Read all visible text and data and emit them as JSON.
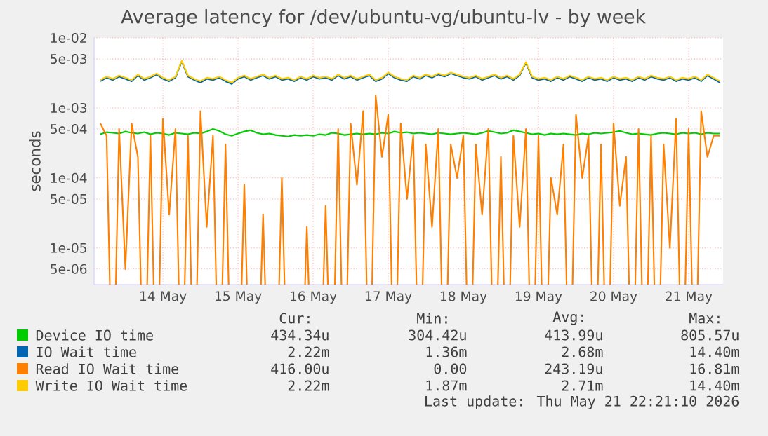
{
  "chart_data": {
    "type": "line",
    "title": "Average latency for /dev/ubuntu-vg/ubuntu-lv - by week",
    "ylabel": "seconds",
    "log": "y",
    "grid": true,
    "legend": "bottom",
    "marker": "none",
    "line_style": "solid",
    "xlim": [
      "2026-05-13T14:00",
      "2026-05-21T23:00"
    ],
    "xticks": [
      {
        "value": "2026-05-14T12:00",
        "label": "14 May"
      },
      {
        "value": "2026-05-15T12:00",
        "label": "15 May"
      },
      {
        "value": "2026-05-16T12:00",
        "label": "16 May"
      },
      {
        "value": "2026-05-17T12:00",
        "label": "17 May"
      },
      {
        "value": "2026-05-18T12:00",
        "label": "18 May"
      },
      {
        "value": "2026-05-19T12:00",
        "label": "19 May"
      },
      {
        "value": "2026-05-20T12:00",
        "label": "20 May"
      },
      {
        "value": "2026-05-21T12:00",
        "label": "21 May"
      }
    ],
    "ylim": [
      3e-06,
      0.01
    ],
    "yticks": [
      {
        "value": 0.01,
        "label": "1e-02"
      },
      {
        "value": 0.005,
        "label": "5e-03"
      },
      {
        "value": 0.001,
        "label": "1e-03"
      },
      {
        "value": 0.0005,
        "label": "5e-04"
      },
      {
        "value": 0.0001,
        "label": "1e-04"
      },
      {
        "value": 5e-05,
        "label": "5e-05"
      },
      {
        "value": 1e-05,
        "label": "1e-05"
      },
      {
        "value": 5e-06,
        "label": "5e-06"
      }
    ],
    "x": [
      "2026-05-13T16:00",
      "2026-05-13T18:00",
      "2026-05-13T20:00",
      "2026-05-13T22:00",
      "2026-05-14T00:00",
      "2026-05-14T02:00",
      "2026-05-14T04:00",
      "2026-05-14T06:00",
      "2026-05-14T08:00",
      "2026-05-14T10:00",
      "2026-05-14T12:00",
      "2026-05-14T14:00",
      "2026-05-14T16:00",
      "2026-05-14T18:00",
      "2026-05-14T20:00",
      "2026-05-14T22:00",
      "2026-05-15T00:00",
      "2026-05-15T02:00",
      "2026-05-15T04:00",
      "2026-05-15T06:00",
      "2026-05-15T08:00",
      "2026-05-15T10:00",
      "2026-05-15T12:00",
      "2026-05-15T14:00",
      "2026-05-15T16:00",
      "2026-05-15T18:00",
      "2026-05-15T20:00",
      "2026-05-15T22:00",
      "2026-05-16T00:00",
      "2026-05-16T02:00",
      "2026-05-16T04:00",
      "2026-05-16T06:00",
      "2026-05-16T08:00",
      "2026-05-16T10:00",
      "2026-05-16T12:00",
      "2026-05-16T14:00",
      "2026-05-16T16:00",
      "2026-05-16T18:00",
      "2026-05-16T20:00",
      "2026-05-16T22:00",
      "2026-05-17T00:00",
      "2026-05-17T02:00",
      "2026-05-17T04:00",
      "2026-05-17T06:00",
      "2026-05-17T08:00",
      "2026-05-17T10:00",
      "2026-05-17T12:00",
      "2026-05-17T14:00",
      "2026-05-17T16:00",
      "2026-05-17T18:00",
      "2026-05-17T20:00",
      "2026-05-17T22:00",
      "2026-05-18T00:00",
      "2026-05-18T02:00",
      "2026-05-18T04:00",
      "2026-05-18T06:00",
      "2026-05-18T08:00",
      "2026-05-18T10:00",
      "2026-05-18T12:00",
      "2026-05-18T14:00",
      "2026-05-18T16:00",
      "2026-05-18T18:00",
      "2026-05-18T20:00",
      "2026-05-18T22:00",
      "2026-05-19T00:00",
      "2026-05-19T02:00",
      "2026-05-19T04:00",
      "2026-05-19T06:00",
      "2026-05-19T08:00",
      "2026-05-19T10:00",
      "2026-05-19T12:00",
      "2026-05-19T14:00",
      "2026-05-19T16:00",
      "2026-05-19T18:00",
      "2026-05-19T20:00",
      "2026-05-19T22:00",
      "2026-05-20T00:00",
      "2026-05-20T02:00",
      "2026-05-20T04:00",
      "2026-05-20T06:00",
      "2026-05-20T08:00",
      "2026-05-20T10:00",
      "2026-05-20T12:00",
      "2026-05-20T14:00",
      "2026-05-20T16:00",
      "2026-05-20T18:00",
      "2026-05-20T20:00",
      "2026-05-20T22:00",
      "2026-05-21T00:00",
      "2026-05-21T02:00",
      "2026-05-21T04:00",
      "2026-05-21T06:00",
      "2026-05-21T08:00",
      "2026-05-21T10:00",
      "2026-05-21T12:00",
      "2026-05-21T14:00",
      "2026-05-21T16:00",
      "2026-05-21T18:00",
      "2026-05-21T20:00",
      "2026-05-21T22:00"
    ],
    "series": [
      {
        "name": "Device IO time",
        "color": "#00cc00",
        "values": [
          0.00042,
          0.00045,
          0.00044,
          0.00043,
          0.00046,
          0.00044,
          0.00043,
          0.00045,
          0.00042,
          0.00044,
          0.00043,
          0.00041,
          0.00044,
          0.00043,
          0.00042,
          0.00044,
          0.00043,
          0.00046,
          0.0005,
          0.00047,
          0.00042,
          0.0004,
          0.00043,
          0.00046,
          0.00048,
          0.00044,
          0.00042,
          0.00043,
          0.00041,
          0.0004,
          0.00039,
          0.00041,
          0.0004,
          0.00041,
          0.0004,
          0.00042,
          0.00041,
          0.00044,
          0.00043,
          0.00041,
          0.00042,
          0.00043,
          0.00042,
          0.00043,
          0.00042,
          0.00044,
          0.00043,
          0.00046,
          0.00044,
          0.00045,
          0.00043,
          0.00044,
          0.00043,
          0.00042,
          0.00044,
          0.00043,
          0.00042,
          0.00043,
          0.00044,
          0.00043,
          0.00042,
          0.00044,
          0.00047,
          0.00045,
          0.00043,
          0.00044,
          0.00048,
          0.00046,
          0.00044,
          0.00042,
          0.00043,
          0.00041,
          0.00043,
          0.00042,
          0.00043,
          0.00042,
          0.00041,
          0.00043,
          0.00042,
          0.00044,
          0.00043,
          0.00044,
          0.00045,
          0.00047,
          0.00044,
          0.00042,
          0.00043,
          0.00042,
          0.00041,
          0.00043,
          0.00044,
          0.00043,
          0.00042,
          0.00044,
          0.00043,
          0.00044,
          0.00042,
          0.00044,
          0.00043,
          0.00043
        ]
      },
      {
        "name": "IO Wait time",
        "color": "#0066b3",
        "values": [
          0.0024,
          0.0027,
          0.0025,
          0.0028,
          0.0026,
          0.0024,
          0.0029,
          0.0025,
          0.0027,
          0.003,
          0.0026,
          0.0024,
          0.0027,
          0.0046,
          0.0028,
          0.0025,
          0.0023,
          0.0026,
          0.0025,
          0.0027,
          0.0024,
          0.0022,
          0.0026,
          0.0028,
          0.0025,
          0.0027,
          0.0029,
          0.0026,
          0.0028,
          0.0025,
          0.0026,
          0.0024,
          0.0027,
          0.0025,
          0.0028,
          0.0026,
          0.0027,
          0.0025,
          0.0029,
          0.0026,
          0.0028,
          0.0025,
          0.0027,
          0.0029,
          0.0024,
          0.0026,
          0.0031,
          0.0027,
          0.0025,
          0.0024,
          0.0028,
          0.0026,
          0.0029,
          0.0027,
          0.003,
          0.0028,
          0.0031,
          0.0029,
          0.0027,
          0.0026,
          0.0028,
          0.0025,
          0.0027,
          0.0029,
          0.0026,
          0.0028,
          0.0025,
          0.0029,
          0.0044,
          0.0027,
          0.0025,
          0.0026,
          0.0024,
          0.0027,
          0.0025,
          0.0028,
          0.0026,
          0.0024,
          0.0027,
          0.0025,
          0.0026,
          0.0024,
          0.0027,
          0.0025,
          0.0026,
          0.0024,
          0.0027,
          0.0025,
          0.0028,
          0.0026,
          0.0025,
          0.0027,
          0.0024,
          0.0026,
          0.0025,
          0.0027,
          0.0024,
          0.0029,
          0.0026,
          0.0023
        ]
      },
      {
        "name": "Read IO Wait time",
        "color": "#ff8000",
        "values": [
          0.0006,
          0.0004,
          null,
          0.0005,
          5e-06,
          0.0006,
          0.0002,
          null,
          0.0004,
          null,
          0.0007,
          3e-05,
          0.0005,
          null,
          0.0004,
          null,
          0.0009,
          2e-05,
          0.0004,
          null,
          0.0003,
          null,
          null,
          8e-05,
          null,
          null,
          3e-05,
          null,
          null,
          0.0001,
          null,
          null,
          null,
          2e-05,
          null,
          null,
          4e-05,
          null,
          0.0005,
          null,
          0.0006,
          8e-05,
          0.0009,
          null,
          0.0015,
          0.0002,
          0.0008,
          null,
          0.0006,
          5e-05,
          0.0004,
          null,
          0.0003,
          2e-05,
          0.0005,
          null,
          0.0003,
          0.0001,
          0.0004,
          null,
          0.0003,
          3e-05,
          0.0005,
          null,
          0.0002,
          null,
          0.0004,
          2e-05,
          0.0005,
          null,
          0.0004,
          null,
          0.0001,
          3e-05,
          0.0003,
          null,
          0.0008,
          0.0001,
          0.0004,
          null,
          0.0003,
          null,
          0.0006,
          4e-05,
          0.0002,
          null,
          0.0005,
          null,
          0.0004,
          null,
          0.0003,
          1e-05,
          0.0007,
          null,
          0.0005,
          null,
          0.0009,
          0.0002,
          0.0004,
          0.0004
        ]
      },
      {
        "name": "Write IO Wait time",
        "color": "#ffcc00",
        "values": [
          0.0025,
          0.0028,
          0.0026,
          0.0029,
          0.0027,
          0.0025,
          0.003,
          0.0026,
          0.0028,
          0.0031,
          0.0027,
          0.0025,
          0.0028,
          0.0047,
          0.0029,
          0.0026,
          0.0024,
          0.0027,
          0.0026,
          0.0028,
          0.0025,
          0.0023,
          0.0027,
          0.0029,
          0.0026,
          0.0028,
          0.003,
          0.0027,
          0.0029,
          0.0026,
          0.0027,
          0.0025,
          0.0028,
          0.0026,
          0.0029,
          0.0027,
          0.0028,
          0.0026,
          0.003,
          0.0027,
          0.0029,
          0.0026,
          0.0028,
          0.003,
          0.0025,
          0.0027,
          0.0032,
          0.0028,
          0.0026,
          0.0025,
          0.0029,
          0.0027,
          0.003,
          0.0028,
          0.0031,
          0.0029,
          0.0032,
          0.003,
          0.0028,
          0.0027,
          0.0029,
          0.0026,
          0.0028,
          0.003,
          0.0027,
          0.0029,
          0.0026,
          0.003,
          0.0045,
          0.0028,
          0.0026,
          0.0027,
          0.0025,
          0.0028,
          0.0026,
          0.0029,
          0.0027,
          0.0025,
          0.0028,
          0.0026,
          0.0027,
          0.0025,
          0.0028,
          0.0026,
          0.0027,
          0.0025,
          0.0028,
          0.0026,
          0.0029,
          0.0027,
          0.0026,
          0.0028,
          0.0025,
          0.0027,
          0.0026,
          0.0028,
          0.0025,
          0.003,
          0.0027,
          0.0024
        ]
      }
    ],
    "annotations": [
      "Cur:",
      "Min:",
      "Avg:",
      "Max:",
      "434.34u",
      "304.42u",
      "413.99u",
      "805.57u",
      "2.22m",
      "1.36m",
      "2.68m",
      "14.40m",
      "416.00u",
      "0.00",
      "243.19u",
      "16.81m",
      "2.22m",
      "1.87m",
      "2.71m",
      "14.40m",
      "Last update: Thu May 21 22:21:10 2026"
    ]
  }
}
